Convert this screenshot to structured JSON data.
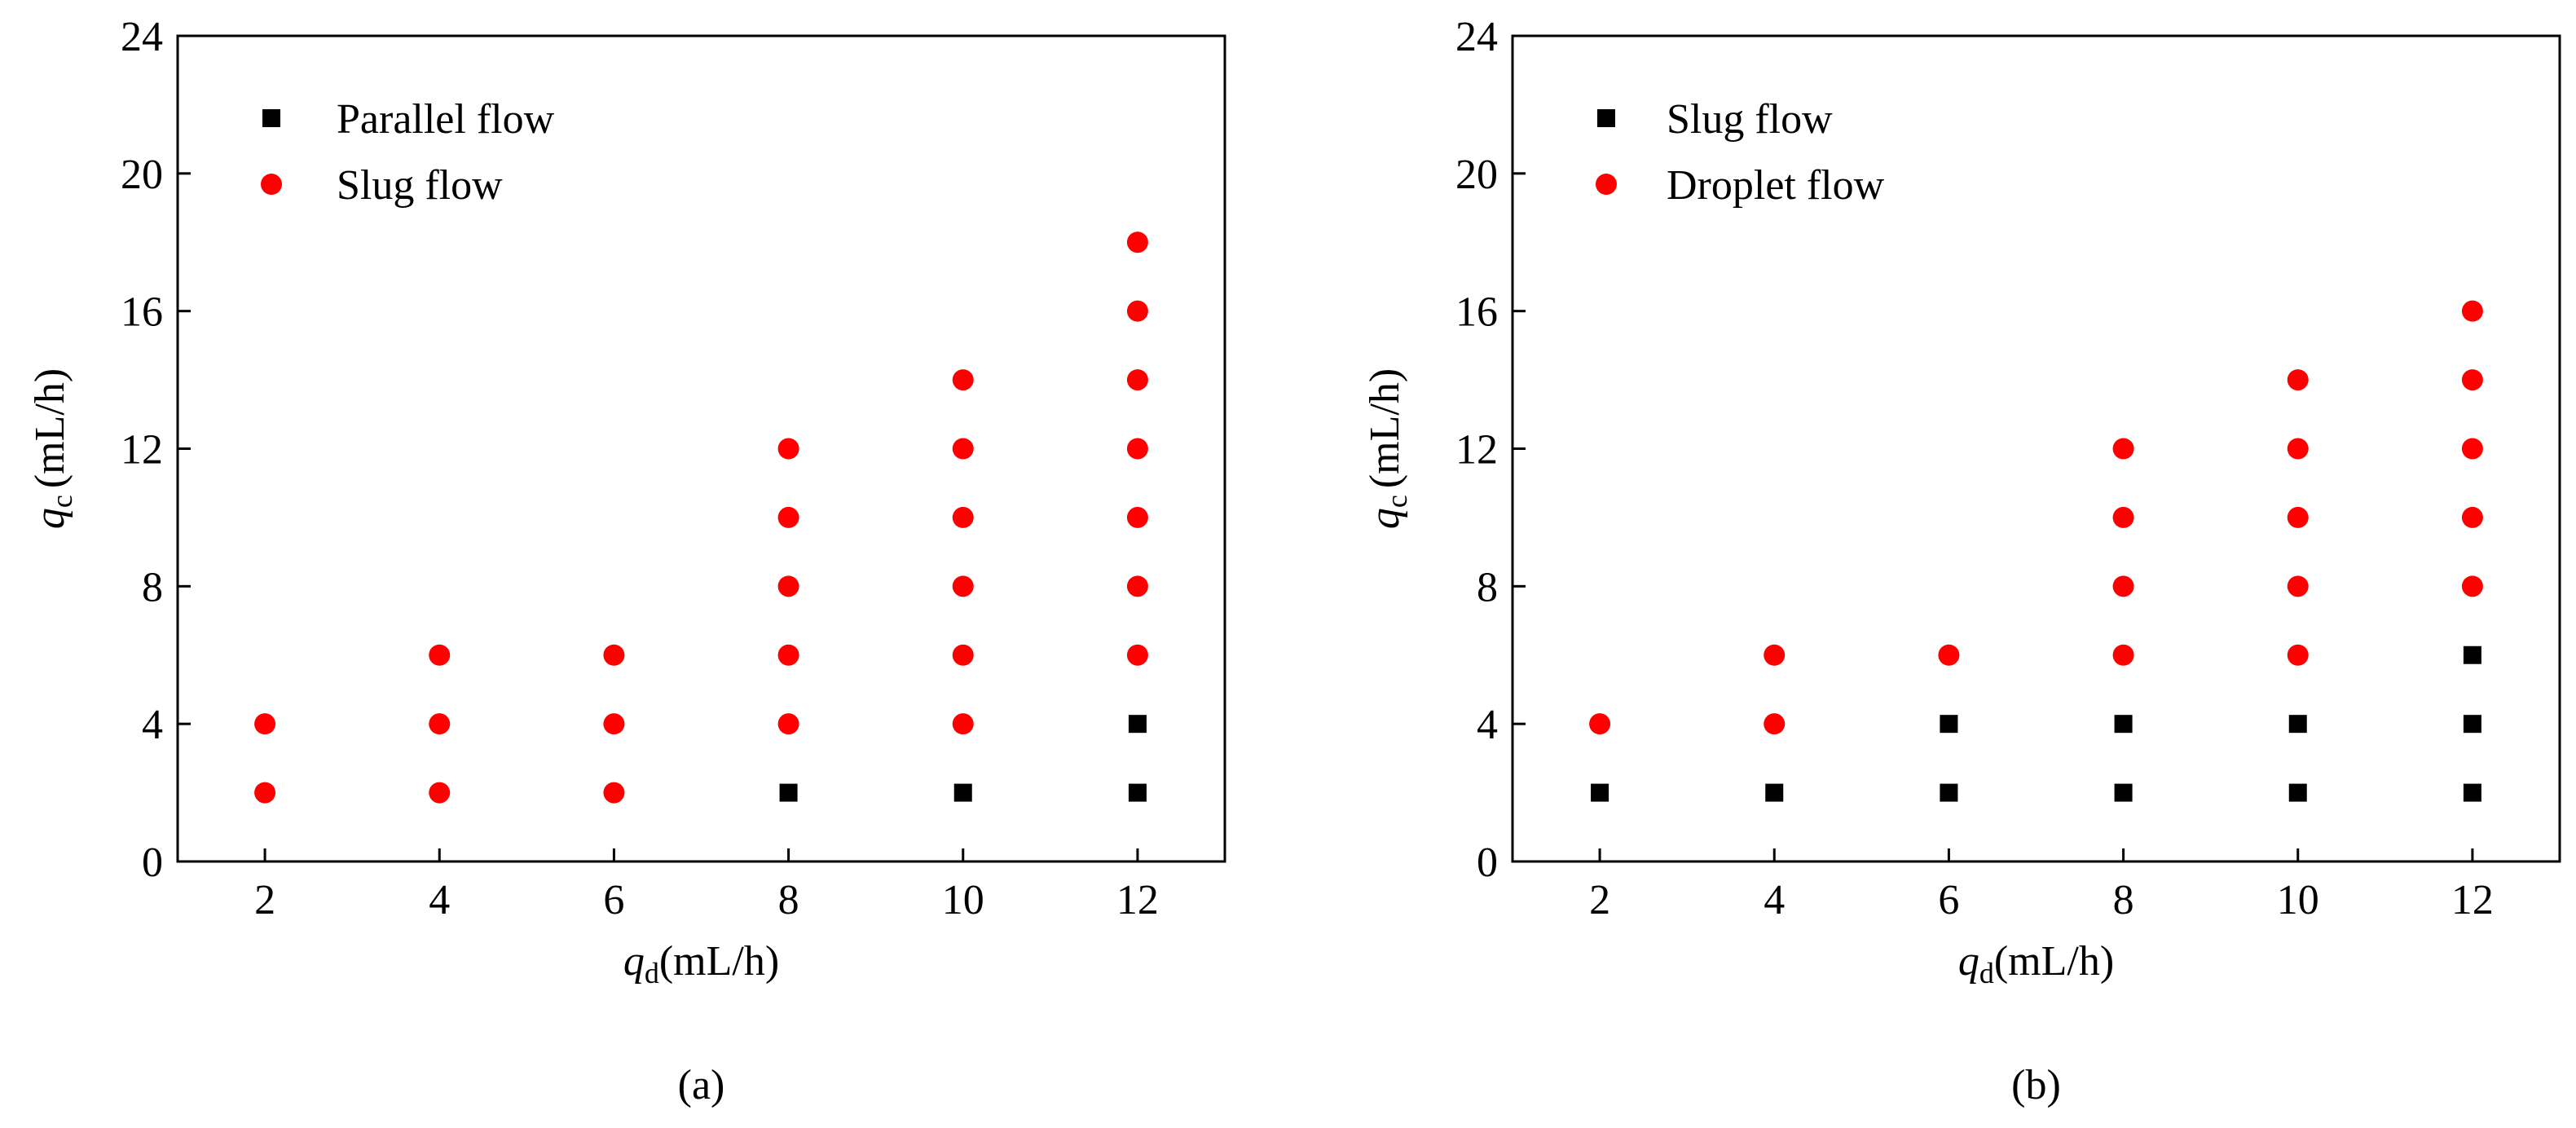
{
  "chart_data": [
    {
      "type": "scatter",
      "panel_label": "(a)",
      "x_label": {
        "symbol": "q",
        "subscript": "d",
        "unit": "(mL/h)"
      },
      "y_label": {
        "symbol": "q",
        "subscript": "c",
        "unit": "(mL/h)"
      },
      "xlim": [
        1,
        13
      ],
      "xticks": [
        2,
        4,
        6,
        8,
        10,
        12
      ],
      "ylim": [
        0,
        24
      ],
      "yticks": [
        0,
        4,
        8,
        12,
        16,
        20,
        24
      ],
      "legend": "upper left",
      "series": [
        {
          "name": "Parallel flow",
          "color": "#000000",
          "marker": "square",
          "x": [
            8,
            10,
            12,
            12
          ],
          "y": [
            2,
            2,
            2,
            4
          ]
        },
        {
          "name": "Slug flow",
          "color": "#ff0000",
          "marker": "circle",
          "x": [
            2,
            2,
            4,
            4,
            4,
            6,
            6,
            6,
            8,
            8,
            8,
            8,
            8,
            10,
            10,
            10,
            10,
            10,
            10,
            12,
            12,
            12,
            12,
            12,
            12,
            12
          ],
          "y": [
            2,
            4,
            2,
            4,
            6,
            2,
            4,
            6,
            4,
            6,
            8,
            10,
            12,
            4,
            6,
            8,
            10,
            12,
            14,
            6,
            8,
            10,
            12,
            14,
            16,
            18
          ]
        }
      ]
    },
    {
      "type": "scatter",
      "panel_label": "(b)",
      "x_label": {
        "symbol": "q",
        "subscript": "d",
        "unit": "(mL/h)"
      },
      "y_label": {
        "symbol": "q",
        "subscript": "c",
        "unit": "(mL/h)"
      },
      "xlim": [
        1,
        13
      ],
      "xticks": [
        2,
        4,
        6,
        8,
        10,
        12
      ],
      "ylim": [
        0,
        24
      ],
      "yticks": [
        0,
        4,
        8,
        12,
        16,
        20,
        24
      ],
      "legend": "upper left",
      "series": [
        {
          "name": "Slug flow",
          "color": "#000000",
          "marker": "square",
          "x": [
            2,
            4,
            6,
            6,
            8,
            8,
            10,
            10,
            12,
            12,
            12
          ],
          "y": [
            2,
            2,
            2,
            4,
            2,
            4,
            2,
            4,
            2,
            4,
            6
          ]
        },
        {
          "name": "Droplet flow",
          "color": "#ff0000",
          "marker": "circle",
          "x": [
            2,
            4,
            4,
            6,
            8,
            8,
            8,
            8,
            10,
            10,
            10,
            10,
            10,
            12,
            12,
            12,
            12,
            12
          ],
          "y": [
            4,
            4,
            6,
            6,
            6,
            8,
            10,
            12,
            6,
            8,
            10,
            12,
            14,
            8,
            10,
            12,
            14,
            16
          ]
        }
      ]
    }
  ]
}
